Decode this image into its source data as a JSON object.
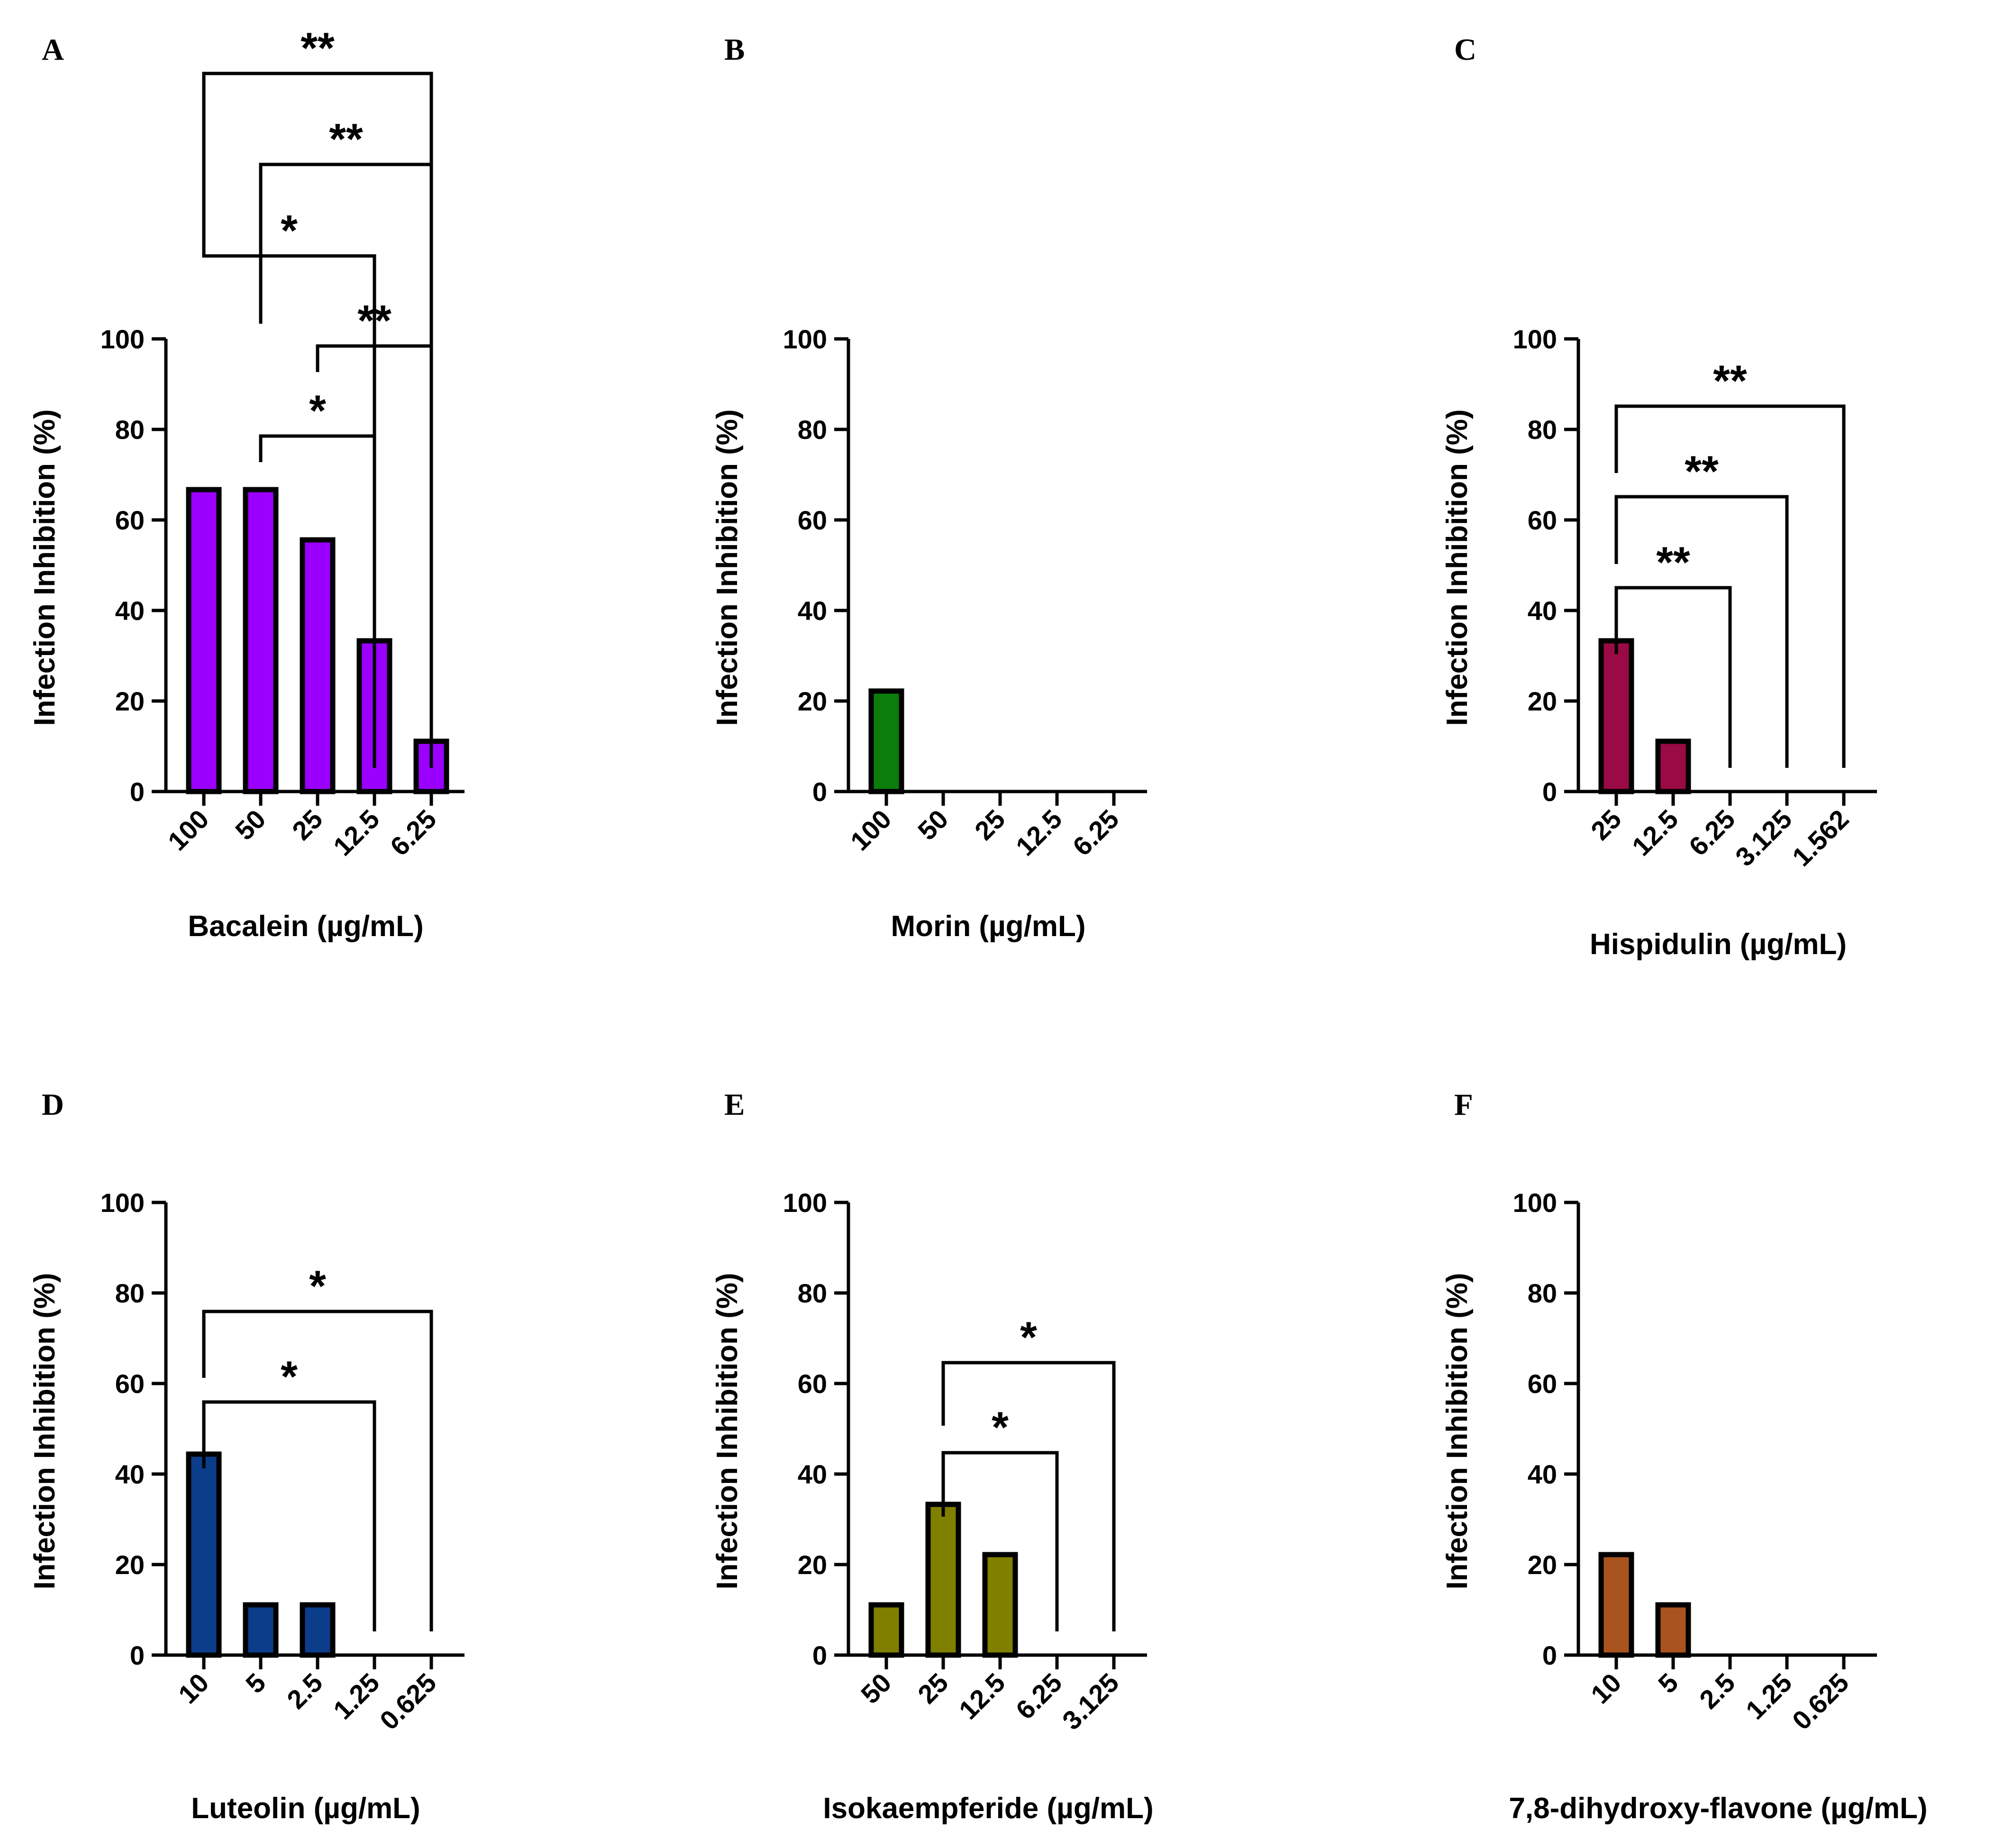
{
  "figure": {
    "panel_count": 6
  },
  "chart_data": [
    {
      "panel": "A",
      "type": "bar",
      "title": "",
      "xlabel": "Bacalein (µg/mL)",
      "ylabel": "Infection Inhibition (%)",
      "ylim": [
        0,
        100
      ],
      "yticks": [
        "0",
        "20",
        "40",
        "60",
        "80",
        "100"
      ],
      "categories": [
        "100",
        "50",
        "25",
        "12.5",
        "6.25"
      ],
      "values": [
        66.7,
        66.7,
        55.6,
        33.3,
        11.1
      ],
      "color": "#9b00ff",
      "significance": [
        {
          "from": 0,
          "to": 4,
          "label": "**"
        },
        {
          "from": 1,
          "to": 4,
          "label": "**"
        },
        {
          "from": 0,
          "to": 3,
          "label": "*"
        },
        {
          "from": 2,
          "to": 4,
          "label": "**"
        },
        {
          "from": 1,
          "to": 3,
          "label": "*"
        }
      ]
    },
    {
      "panel": "B",
      "type": "bar",
      "title": "",
      "xlabel": "Morin (µg/mL)",
      "ylabel": "Infection Inhibition (%)",
      "ylim": [
        0,
        100
      ],
      "yticks": [
        "0",
        "20",
        "40",
        "60",
        "80",
        "100"
      ],
      "categories": [
        "100",
        "50",
        "25",
        "12.5",
        "6.25"
      ],
      "values": [
        22.2,
        0,
        0,
        0,
        0
      ],
      "color": "#0b7d0b",
      "significance": []
    },
    {
      "panel": "C",
      "type": "bar",
      "title": "",
      "xlabel": "Hispidulin (µg/mL)",
      "ylabel": "Infection Inhibition (%)",
      "ylim": [
        0,
        100
      ],
      "yticks": [
        "0",
        "20",
        "40",
        "60",
        "80",
        "100"
      ],
      "categories": [
        "25",
        "12.5",
        "6.25",
        "3.125",
        "1.562"
      ],
      "values": [
        33.3,
        11.1,
        0,
        0,
        0
      ],
      "color": "#9a0a45",
      "significance": [
        {
          "from": 0,
          "to": 4,
          "label": "**"
        },
        {
          "from": 0,
          "to": 3,
          "label": "**"
        },
        {
          "from": 0,
          "to": 2,
          "label": "**"
        }
      ]
    },
    {
      "panel": "D",
      "type": "bar",
      "title": "",
      "xlabel": "Luteolin (µg/mL)",
      "ylabel": "Infection Inhibition (%)",
      "ylim": [
        0,
        100
      ],
      "yticks": [
        "0",
        "20",
        "40",
        "60",
        "80",
        "100"
      ],
      "categories": [
        "10",
        "5",
        "2.5",
        "1.25",
        "0.625"
      ],
      "values": [
        44.4,
        11.1,
        11.1,
        0,
        0
      ],
      "color": "#0b3d8a",
      "significance": [
        {
          "from": 0,
          "to": 4,
          "label": "*"
        },
        {
          "from": 0,
          "to": 3,
          "label": "*"
        }
      ]
    },
    {
      "panel": "E",
      "type": "bar",
      "title": "",
      "xlabel": "Isokaempferide (µg/mL)",
      "ylabel": "Infection Inhibition (%)",
      "ylim": [
        0,
        100
      ],
      "yticks": [
        "0",
        "20",
        "40",
        "60",
        "80",
        "100"
      ],
      "categories": [
        "50",
        "25",
        "12.5",
        "6.25",
        "3.125"
      ],
      "values": [
        11.1,
        33.3,
        22.2,
        0,
        0
      ],
      "color": "#7f7f00",
      "significance": [
        {
          "from": 1,
          "to": 4,
          "label": "*"
        },
        {
          "from": 1,
          "to": 3,
          "label": "*"
        }
      ]
    },
    {
      "panel": "F",
      "type": "bar",
      "title": "",
      "xlabel": "7,8-dihydroxy-flavone (µg/mL)",
      "ylabel": "Infection Inhibition (%)",
      "ylim": [
        0,
        100
      ],
      "yticks": [
        "0",
        "20",
        "40",
        "60",
        "80",
        "100"
      ],
      "categories": [
        "10",
        "5",
        "2.5",
        "1.25",
        "0.625"
      ],
      "values": [
        22.2,
        11.1,
        0,
        0,
        0
      ],
      "color": "#a9541e",
      "significance": []
    }
  ]
}
